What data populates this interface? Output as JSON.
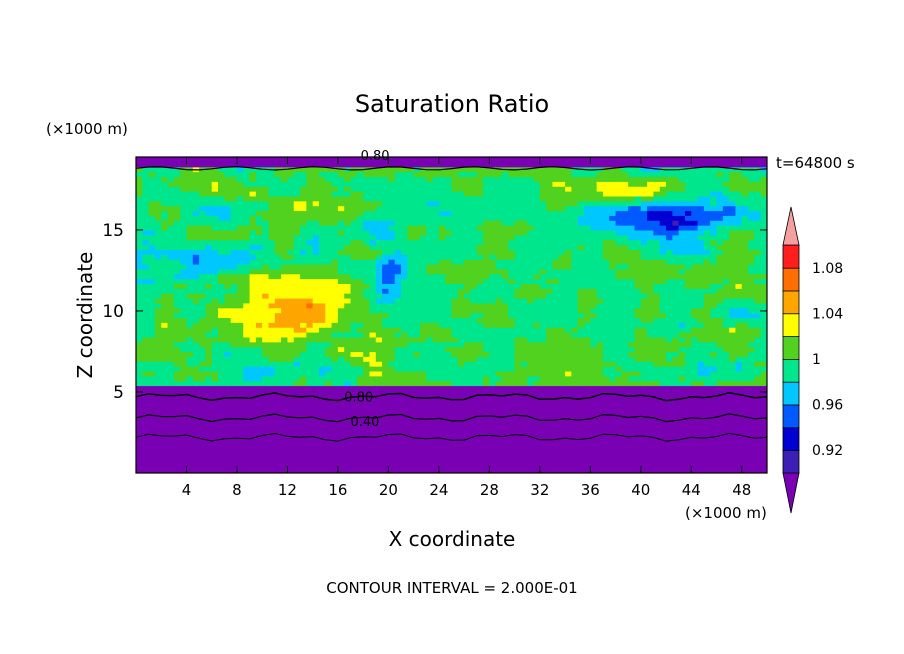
{
  "chart_data": {
    "type": "heatmap",
    "title": "Saturation Ratio",
    "xlabel": "X coordinate",
    "ylabel": "Z coordinate",
    "x_units": "(×1000 m)",
    "y_units": "(×1000 m)",
    "xlim": [
      0,
      50
    ],
    "ylim": [
      0,
      19.5
    ],
    "x_ticks": [
      "4",
      "8",
      "12",
      "16",
      "20",
      "24",
      "28",
      "32",
      "36",
      "40",
      "44",
      "48"
    ],
    "y_ticks": [
      "5",
      "10",
      "15"
    ],
    "time_label": "t=64800 s",
    "footer": "CONTOUR INTERVAL = 2.000E-01",
    "contour_labels": [
      "0.80",
      "0.80",
      "0.40"
    ],
    "colorbar": {
      "labels": [
        "1.08",
        "1.04",
        "1",
        "0.96",
        "0.92"
      ],
      "levels": [
        0.9,
        0.92,
        0.94,
        0.96,
        0.98,
        1.0,
        1.02,
        1.04,
        1.06,
        1.08,
        1.1
      ],
      "colors": [
        "#7a00b4",
        "#3c1fb4",
        "#0000d2",
        "#005aff",
        "#00c8ff",
        "#00e68c",
        "#50d21e",
        "#ffff00",
        "#ffa500",
        "#ff6e00",
        "#ff1e1e",
        "#f5a0a0"
      ]
    }
  }
}
